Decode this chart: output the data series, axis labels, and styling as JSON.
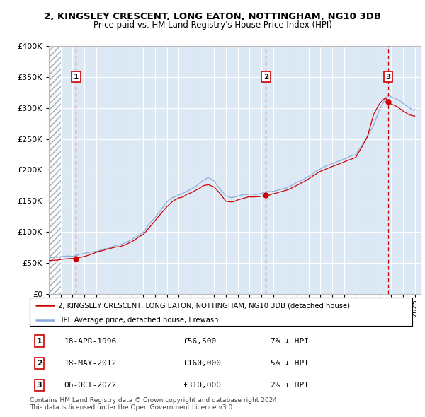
{
  "title1": "2, KINGSLEY CRESCENT, LONG EATON, NOTTINGHAM, NG10 3DB",
  "title2": "Price paid vs. HM Land Registry's House Price Index (HPI)",
  "legend_line1": "2, KINGSLEY CRESCENT, LONG EATON, NOTTINGHAM, NG10 3DB (detached house)",
  "legend_line2": "HPI: Average price, detached house, Erewash",
  "sale1_date": "18-APR-1996",
  "sale1_price": 56500,
  "sale1_hpi": "7% ↓ HPI",
  "sale2_date": "18-MAY-2012",
  "sale2_price": 160000,
  "sale2_hpi": "5% ↓ HPI",
  "sale3_date": "06-OCT-2022",
  "sale3_price": 310000,
  "sale3_hpi": "2% ↑ HPI",
  "footer": "Contains HM Land Registry data © Crown copyright and database right 2024.\nThis data is licensed under the Open Government Licence v3.0.",
  "bg_color": "#dce9f5",
  "hpi_color": "#88aadd",
  "price_color": "#cc0000",
  "vline_color": "#cc0000",
  "grid_color": "#ffffff",
  "ylim": [
    0,
    400000
  ],
  "yticks": [
    0,
    50000,
    100000,
    150000,
    200000,
    250000,
    300000,
    350000,
    400000
  ],
  "xstart": 1994.0,
  "xend": 2025.5,
  "sale1_t": 1996.297,
  "sale2_t": 2012.38,
  "sale3_t": 2022.756
}
